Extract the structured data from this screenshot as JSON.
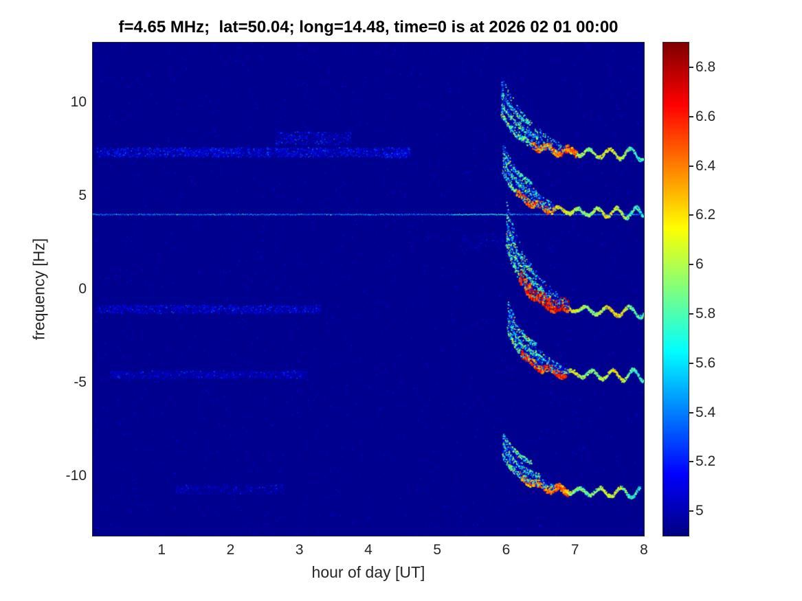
{
  "chart_data": {
    "type": "heatmap",
    "subtype": "doppler-spectrogram",
    "title": "f=4.65 MHz;  lat=50.04; long=14.48, time=0 is at 2026 02 01 00:00",
    "xlabel": "hour of day [UT]",
    "ylabel": "frequency [Hz]",
    "xlim": [
      0,
      8
    ],
    "ylim": [
      -13.2,
      13.2
    ],
    "grid": false,
    "colormap": "jet",
    "background_value": 4.93,
    "x_ticks": [
      {
        "value": 1,
        "label": "1"
      },
      {
        "value": 2,
        "label": "2"
      },
      {
        "value": 3,
        "label": "3"
      },
      {
        "value": 4,
        "label": "4"
      },
      {
        "value": 5,
        "label": "5"
      },
      {
        "value": 6,
        "label": "6"
      },
      {
        "value": 7,
        "label": "7"
      },
      {
        "value": 8,
        "label": "8"
      }
    ],
    "y_ticks": [
      {
        "value": 10,
        "label": "10"
      },
      {
        "value": 5,
        "label": "5"
      },
      {
        "value": 0,
        "label": "0"
      },
      {
        "value": -5,
        "label": "-5"
      },
      {
        "value": -10,
        "label": "-10"
      }
    ],
    "colorbar": {
      "limits": [
        4.9,
        6.9
      ],
      "ticks": [
        {
          "value": 5.0,
          "label": "5"
        },
        {
          "value": 5.2,
          "label": "5.2"
        },
        {
          "value": 5.4,
          "label": "5.4"
        },
        {
          "value": 5.6,
          "label": "5.6"
        },
        {
          "value": 5.8,
          "label": "5.8"
        },
        {
          "value": 6.0,
          "label": "6"
        },
        {
          "value": 6.2,
          "label": "6.2"
        },
        {
          "value": 6.4,
          "label": "6.4"
        },
        {
          "value": 6.6,
          "label": "6.6"
        },
        {
          "value": 6.8,
          "label": "6.8"
        }
      ]
    },
    "features": {
      "noise": {
        "count": 6500,
        "vmin": 4.9,
        "vmax": 5.16
      },
      "horizontal_bands": [
        {
          "f": 7.35,
          "spread": 0.5,
          "t0": 0.05,
          "t1": 4.6,
          "value": 5.1,
          "jitter": 0.3,
          "density": 420
        },
        {
          "f": 8.1,
          "spread": 0.7,
          "t0": 2.65,
          "t1": 3.75,
          "value": 5.1,
          "jitter": 0.25,
          "density": 300
        },
        {
          "f": -1.05,
          "spread": 0.45,
          "t0": 0.05,
          "t1": 3.3,
          "value": 5.08,
          "jitter": 0.25,
          "density": 320
        },
        {
          "f": -4.55,
          "spread": 0.4,
          "t0": 0.25,
          "t1": 3.1,
          "value": 5.05,
          "jitter": 0.2,
          "density": 260
        },
        {
          "f": -10.7,
          "spread": 0.5,
          "t0": 1.2,
          "t1": 2.8,
          "value": 5.03,
          "jitter": 0.18,
          "density": 200
        },
        {
          "f": 7.2,
          "spread": 0.3,
          "t0": 4.2,
          "t1": 4.55,
          "value": 5.15,
          "jitter": 0.25,
          "density": 260
        },
        {
          "f": 2.6,
          "spread": 0.8,
          "t0": 5.3,
          "t1": 5.95,
          "value": 5.0,
          "jitter": 0.2,
          "density": 150
        }
      ],
      "carrier_line": {
        "f": 4.02,
        "t0": 0,
        "t1": 8,
        "value": 5.35,
        "jitter": 0.3,
        "bright_t0": 5.2,
        "bright_t1": 6.1,
        "boost": 0.25
      },
      "chirp_events": [
        {
          "t_start": 5.93,
          "t_blob_end": 6.85,
          "t_tail_end": 8.0,
          "f_start": 9.4,
          "f_tail": 7.3,
          "tau": 0.3,
          "knee_u0": 0.45,
          "knee_u1": 1.1,
          "peak_value": 6.65,
          "tail_value": 6.0,
          "core_size": 3,
          "blob_spread": 2.0,
          "blob_points": 500,
          "wiggle_amp": 0.16,
          "wiggle_period": 0.3,
          "wiggle_phase": 0.0,
          "tail_slope": -0.04
        },
        {
          "t_start": 5.95,
          "t_blob_end": 6.7,
          "t_tail_end": 8.0,
          "f_start": 6.3,
          "f_tail": 4.15,
          "tau": 0.28,
          "knee_u0": 0.2,
          "knee_u1": 0.75,
          "peak_value": 6.7,
          "tail_value": 6.0,
          "core_size": 3,
          "blob_spread": 1.6,
          "blob_points": 480,
          "wiggle_amp": 0.15,
          "wiggle_period": 0.28,
          "wiggle_phase": 2.1,
          "tail_slope": -0.04
        },
        {
          "t_start": 6.0,
          "t_blob_end": 6.9,
          "t_tail_end": 8.0,
          "f_start": 2.4,
          "f_tail": -1.15,
          "tau": 0.3,
          "knee_u0": 0.2,
          "knee_u1": 0.9,
          "peak_value": 6.9,
          "tail_value": 6.05,
          "core_size": 4.5,
          "blob_spread": 2.2,
          "blob_points": 650,
          "wiggle_amp": 0.14,
          "wiggle_period": 0.32,
          "wiggle_phase": 4.2,
          "tail_slope": -0.04
        },
        {
          "t_start": 6.02,
          "t_blob_end": 6.9,
          "t_tail_end": 8.0,
          "f_start": -2.2,
          "f_tail": -4.55,
          "tau": 0.27,
          "knee_u0": 0.2,
          "knee_u1": 0.85,
          "peak_value": 6.8,
          "tail_value": 6.0,
          "core_size": 3.5,
          "blob_spread": 1.6,
          "blob_points": 500,
          "wiggle_amp": 0.16,
          "wiggle_period": 0.3,
          "wiggle_phase": 1.0,
          "tail_slope": -0.04
        },
        {
          "t_start": 5.95,
          "t_blob_end": 6.7,
          "t_tail_end": 7.95,
          "f_start": -8.9,
          "f_tail": -10.85,
          "tau": 0.3,
          "knee_u0": 0.25,
          "knee_u1": 0.95,
          "peak_value": 6.65,
          "tail_value": 5.95,
          "core_size": 3,
          "blob_spread": 1.2,
          "blob_points": 420,
          "wiggle_amp": 0.15,
          "wiggle_period": 0.3,
          "wiggle_phase": 3.3,
          "tail_slope": -0.02
        }
      ]
    }
  }
}
